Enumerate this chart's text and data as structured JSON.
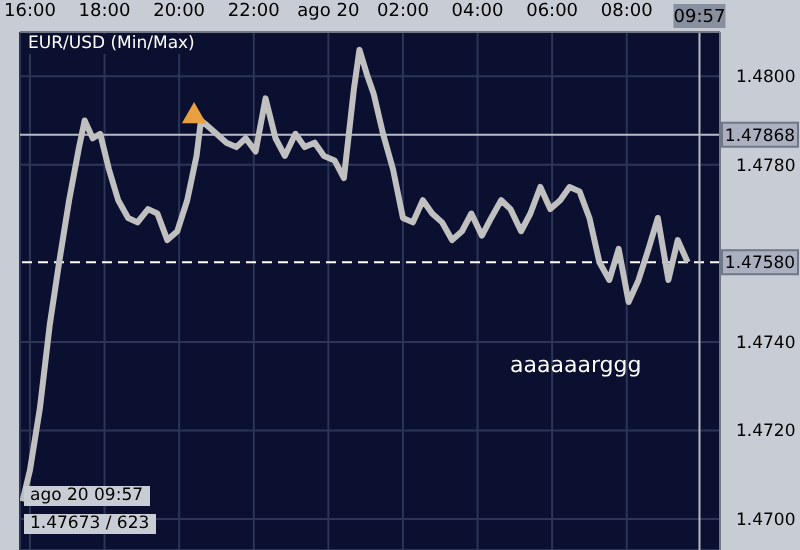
{
  "chart_data": {
    "type": "line",
    "title": "EUR/USD (Min/Max)",
    "annotations": [
      "aaaaaarggg",
      "ago 20 09:57",
      "1.47673 / 623"
    ],
    "xlim": [
      "--08-19T15:44",
      "--08-20T10:30"
    ],
    "xticks": [
      {
        "value": "--08-19T16:00",
        "label": "16:00"
      },
      {
        "value": "--08-19T18:00",
        "label": "18:00"
      },
      {
        "value": "--08-19T20:00",
        "label": "20:00"
      },
      {
        "value": "--08-19T22:00",
        "label": "22:00"
      },
      {
        "value": "--08-20T00:00",
        "label": "ago 20"
      },
      {
        "value": "--08-20T02:00",
        "label": "02:00"
      },
      {
        "value": "--08-20T04:00",
        "label": "04:00"
      },
      {
        "value": "--08-20T06:00",
        "label": "06:00"
      },
      {
        "value": "--08-20T08:00",
        "label": "08:00"
      }
    ],
    "ylim": [
      1.4693,
      1.481
    ],
    "yticks": [
      {
        "value": 1.47,
        "label": "1.4700"
      },
      {
        "value": 1.472,
        "label": "1.4720"
      },
      {
        "value": 1.474,
        "label": "1.4740"
      },
      {
        "value": 1.478,
        "label": "1.4780"
      },
      {
        "value": 1.48,
        "label": "1.4800"
      }
    ],
    "grid": true,
    "series": [
      {
        "color": "#c0c0c0",
        "x": [
          "--08-19T15:48",
          "--08-19T16:00",
          "--08-19T16:16",
          "--08-19T16:32",
          "--08-19T16:47",
          "--08-19T17:03",
          "--08-19T17:19",
          "--08-19T17:28",
          "--08-19T17:41",
          "--08-19T17:53",
          "--08-19T18:07",
          "--08-19T18:22",
          "--08-19T18:38",
          "--08-19T18:53",
          "--08-19T19:10",
          "--08-19T19:25",
          "--08-19T19:41",
          "--08-19T19:57",
          "--08-19T20:13",
          "--08-19T20:28",
          "--08-19T20:35",
          "--08-19T20:44",
          "--08-19T21:00",
          "--08-19T21:16",
          "--08-19T21:32",
          "--08-19T21:47",
          "--08-19T22:03",
          "--08-19T22:19",
          "--08-19T22:35",
          "--08-19T22:50",
          "--08-19T23:07",
          "--08-19T23:22",
          "--08-19T23:38",
          "--08-19T23:53",
          "--08-20T00:10",
          "--08-20T00:25",
          "--08-20T00:41",
          "--08-20T00:50",
          "--08-20T01:03",
          "--08-20T01:13",
          "--08-20T01:28",
          "--08-20T01:44",
          "--08-20T02:00",
          "--08-20T02:16",
          "--08-20T02:32",
          "--08-20T02:47",
          "--08-20T03:03",
          "--08-20T03:19",
          "--08-20T03:35",
          "--08-20T03:50",
          "--08-20T04:07",
          "--08-20T04:22",
          "--08-20T04:38",
          "--08-20T04:53",
          "--08-20T05:10",
          "--08-20T05:25",
          "--08-20T05:41",
          "--08-20T05:57",
          "--08-20T06:13",
          "--08-20T06:28",
          "--08-20T06:44",
          "--08-20T07:00",
          "--08-20T07:16",
          "--08-20T07:32",
          "--08-20T07:47",
          "--08-20T08:03",
          "--08-20T08:19",
          "--08-20T08:35",
          "--08-20T08:50",
          "--08-20T09:07",
          "--08-20T09:22",
          "--08-20T09:38"
        ],
        "values": [
          1.4704,
          1.4711,
          1.4725,
          1.4744,
          1.4758,
          1.4772,
          1.4784,
          1.479,
          1.4786,
          1.4787,
          1.4779,
          1.4772,
          1.4768,
          1.4767,
          1.477,
          1.4769,
          1.4763,
          1.4765,
          1.4772,
          1.4782,
          1.479,
          1.4789,
          1.4787,
          1.4785,
          1.4784,
          1.4786,
          1.4783,
          1.4795,
          1.4786,
          1.4782,
          1.4787,
          1.4784,
          1.4785,
          1.4782,
          1.4781,
          1.4777,
          1.4797,
          1.4806,
          1.48,
          1.4796,
          1.4787,
          1.4779,
          1.4768,
          1.4767,
          1.4772,
          1.4769,
          1.4767,
          1.4763,
          1.4765,
          1.4769,
          1.4764,
          1.4768,
          1.4772,
          1.477,
          1.4765,
          1.4769,
          1.4775,
          1.477,
          1.4772,
          1.4775,
          1.4774,
          1.4768,
          1.4758,
          1.4754,
          1.4761,
          1.4749,
          1.4754,
          1.4761,
          1.4768,
          1.4754,
          1.4763,
          1.4758
        ]
      },
      {
        "type": "scatter",
        "marker": "triangle",
        "color": "#e8a040",
        "x": [
          "--08-19T20:24"
        ],
        "values": [
          1.4791
        ]
      }
    ],
    "ref_lines": [
      {
        "axis": "y",
        "value": 1.47868,
        "label": "1.47868",
        "color": "#b8bcc8",
        "line_style": "solid"
      },
      {
        "axis": "y",
        "value": 1.4758,
        "label": "1.47580",
        "color": "#ffffff",
        "line_style": "dashed"
      },
      {
        "axis": "x",
        "value": "--08-20T09:57",
        "label": "09:57",
        "color": "#b8bcc8",
        "line_style": "solid"
      }
    ]
  }
}
